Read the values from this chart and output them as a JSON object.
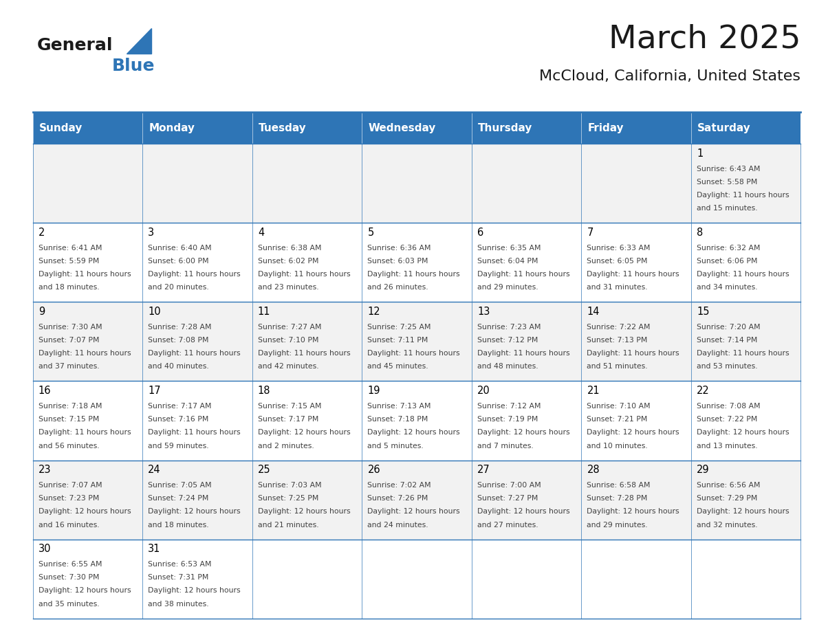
{
  "title": "March 2025",
  "subtitle": "McCloud, California, United States",
  "days_of_week": [
    "Sunday",
    "Monday",
    "Tuesday",
    "Wednesday",
    "Thursday",
    "Friday",
    "Saturday"
  ],
  "header_bg": "#2E75B6",
  "header_text": "#FFFFFF",
  "cell_bg_odd": "#F2F2F2",
  "cell_bg_even": "#FFFFFF",
  "border_color": "#2E75B6",
  "day_number_color": "#000000",
  "cell_text_color": "#404040",
  "title_color": "#1a1a1a",
  "subtitle_color": "#1a1a1a",
  "logo_general_color": "#1a1a1a",
  "logo_blue_color": "#2E75B6",
  "calendar_data": [
    {
      "day": 1,
      "col": 6,
      "row": 0,
      "sunrise": "6:43 AM",
      "sunset": "5:58 PM",
      "daylight": "11 hours and 15 minutes."
    },
    {
      "day": 2,
      "col": 0,
      "row": 1,
      "sunrise": "6:41 AM",
      "sunset": "5:59 PM",
      "daylight": "11 hours and 18 minutes."
    },
    {
      "day": 3,
      "col": 1,
      "row": 1,
      "sunrise": "6:40 AM",
      "sunset": "6:00 PM",
      "daylight": "11 hours and 20 minutes."
    },
    {
      "day": 4,
      "col": 2,
      "row": 1,
      "sunrise": "6:38 AM",
      "sunset": "6:02 PM",
      "daylight": "11 hours and 23 minutes."
    },
    {
      "day": 5,
      "col": 3,
      "row": 1,
      "sunrise": "6:36 AM",
      "sunset": "6:03 PM",
      "daylight": "11 hours and 26 minutes."
    },
    {
      "day": 6,
      "col": 4,
      "row": 1,
      "sunrise": "6:35 AM",
      "sunset": "6:04 PM",
      "daylight": "11 hours and 29 minutes."
    },
    {
      "day": 7,
      "col": 5,
      "row": 1,
      "sunrise": "6:33 AM",
      "sunset": "6:05 PM",
      "daylight": "11 hours and 31 minutes."
    },
    {
      "day": 8,
      "col": 6,
      "row": 1,
      "sunrise": "6:32 AM",
      "sunset": "6:06 PM",
      "daylight": "11 hours and 34 minutes."
    },
    {
      "day": 9,
      "col": 0,
      "row": 2,
      "sunrise": "7:30 AM",
      "sunset": "7:07 PM",
      "daylight": "11 hours and 37 minutes."
    },
    {
      "day": 10,
      "col": 1,
      "row": 2,
      "sunrise": "7:28 AM",
      "sunset": "7:08 PM",
      "daylight": "11 hours and 40 minutes."
    },
    {
      "day": 11,
      "col": 2,
      "row": 2,
      "sunrise": "7:27 AM",
      "sunset": "7:10 PM",
      "daylight": "11 hours and 42 minutes."
    },
    {
      "day": 12,
      "col": 3,
      "row": 2,
      "sunrise": "7:25 AM",
      "sunset": "7:11 PM",
      "daylight": "11 hours and 45 minutes."
    },
    {
      "day": 13,
      "col": 4,
      "row": 2,
      "sunrise": "7:23 AM",
      "sunset": "7:12 PM",
      "daylight": "11 hours and 48 minutes."
    },
    {
      "day": 14,
      "col": 5,
      "row": 2,
      "sunrise": "7:22 AM",
      "sunset": "7:13 PM",
      "daylight": "11 hours and 51 minutes."
    },
    {
      "day": 15,
      "col": 6,
      "row": 2,
      "sunrise": "7:20 AM",
      "sunset": "7:14 PM",
      "daylight": "11 hours and 53 minutes."
    },
    {
      "day": 16,
      "col": 0,
      "row": 3,
      "sunrise": "7:18 AM",
      "sunset": "7:15 PM",
      "daylight": "11 hours and 56 minutes."
    },
    {
      "day": 17,
      "col": 1,
      "row": 3,
      "sunrise": "7:17 AM",
      "sunset": "7:16 PM",
      "daylight": "11 hours and 59 minutes."
    },
    {
      "day": 18,
      "col": 2,
      "row": 3,
      "sunrise": "7:15 AM",
      "sunset": "7:17 PM",
      "daylight": "12 hours and 2 minutes."
    },
    {
      "day": 19,
      "col": 3,
      "row": 3,
      "sunrise": "7:13 AM",
      "sunset": "7:18 PM",
      "daylight": "12 hours and 5 minutes."
    },
    {
      "day": 20,
      "col": 4,
      "row": 3,
      "sunrise": "7:12 AM",
      "sunset": "7:19 PM",
      "daylight": "12 hours and 7 minutes."
    },
    {
      "day": 21,
      "col": 5,
      "row": 3,
      "sunrise": "7:10 AM",
      "sunset": "7:21 PM",
      "daylight": "12 hours and 10 minutes."
    },
    {
      "day": 22,
      "col": 6,
      "row": 3,
      "sunrise": "7:08 AM",
      "sunset": "7:22 PM",
      "daylight": "12 hours and 13 minutes."
    },
    {
      "day": 23,
      "col": 0,
      "row": 4,
      "sunrise": "7:07 AM",
      "sunset": "7:23 PM",
      "daylight": "12 hours and 16 minutes."
    },
    {
      "day": 24,
      "col": 1,
      "row": 4,
      "sunrise": "7:05 AM",
      "sunset": "7:24 PM",
      "daylight": "12 hours and 18 minutes."
    },
    {
      "day": 25,
      "col": 2,
      "row": 4,
      "sunrise": "7:03 AM",
      "sunset": "7:25 PM",
      "daylight": "12 hours and 21 minutes."
    },
    {
      "day": 26,
      "col": 3,
      "row": 4,
      "sunrise": "7:02 AM",
      "sunset": "7:26 PM",
      "daylight": "12 hours and 24 minutes."
    },
    {
      "day": 27,
      "col": 4,
      "row": 4,
      "sunrise": "7:00 AM",
      "sunset": "7:27 PM",
      "daylight": "12 hours and 27 minutes."
    },
    {
      "day": 28,
      "col": 5,
      "row": 4,
      "sunrise": "6:58 AM",
      "sunset": "7:28 PM",
      "daylight": "12 hours and 29 minutes."
    },
    {
      "day": 29,
      "col": 6,
      "row": 4,
      "sunrise": "6:56 AM",
      "sunset": "7:29 PM",
      "daylight": "12 hours and 32 minutes."
    },
    {
      "day": 30,
      "col": 0,
      "row": 5,
      "sunrise": "6:55 AM",
      "sunset": "7:30 PM",
      "daylight": "12 hours and 35 minutes."
    },
    {
      "day": 31,
      "col": 1,
      "row": 5,
      "sunrise": "6:53 AM",
      "sunset": "7:31 PM",
      "daylight": "12 hours and 38 minutes."
    }
  ]
}
